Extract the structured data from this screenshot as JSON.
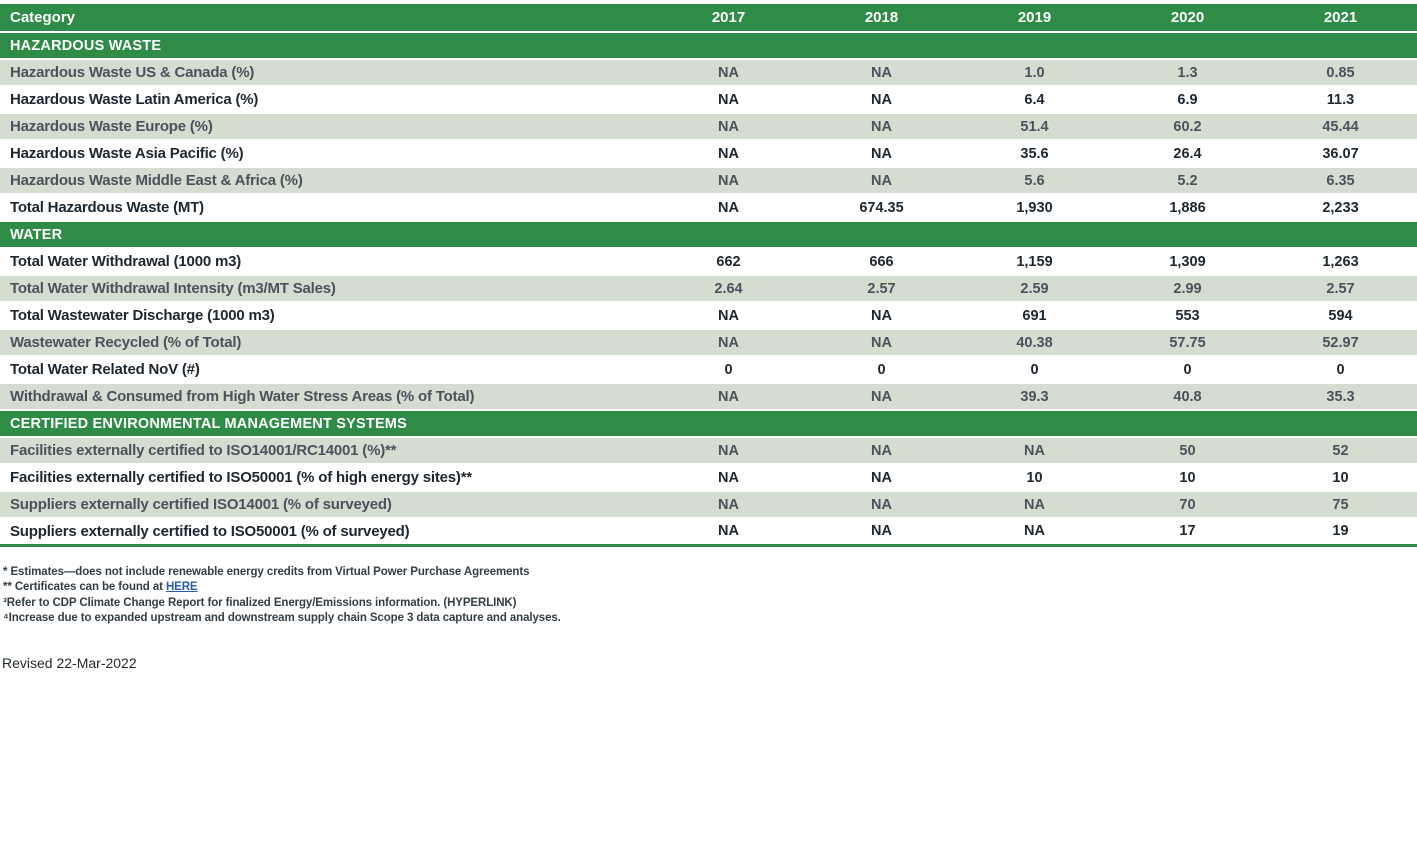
{
  "table": {
    "columns": [
      "Category",
      "2017",
      "2018",
      "2019",
      "2020",
      "2021"
    ],
    "sections": [
      {
        "header": "HAZARDOUS WASTE",
        "rows": [
          {
            "label": "Hazardous Waste US & Canada (%)",
            "values": [
              "NA",
              "NA",
              "1.0",
              "1.3",
              "0.85"
            ]
          },
          {
            "label": "Hazardous Waste Latin America (%)",
            "values": [
              "NA",
              "NA",
              "6.4",
              "6.9",
              "11.3"
            ]
          },
          {
            "label": "Hazardous Waste Europe (%)",
            "values": [
              "NA",
              "NA",
              "51.4",
              "60.2",
              "45.44"
            ]
          },
          {
            "label": "Hazardous Waste Asia Pacific (%)",
            "values": [
              "NA",
              "NA",
              "35.6",
              "26.4",
              "36.07"
            ]
          },
          {
            "label": "Hazardous Waste Middle East & Africa (%)",
            "values": [
              "NA",
              "NA",
              "5.6",
              "5.2",
              "6.35"
            ]
          },
          {
            "label": "Total Hazardous Waste (MT)",
            "values": [
              "NA",
              "674.35",
              "1,930",
              "1,886",
              "2,233"
            ]
          }
        ]
      },
      {
        "header": "WATER",
        "rows": [
          {
            "label": "Total Water Withdrawal (1000 m3)",
            "values": [
              "662",
              "666",
              "1,159",
              "1,309",
              "1,263"
            ]
          },
          {
            "label": "Total Water Withdrawal Intensity (m3/MT Sales)",
            "values": [
              "2.64",
              "2.57",
              "2.59",
              "2.99",
              "2.57"
            ]
          },
          {
            "label": "Total Wastewater Discharge (1000 m3)",
            "values": [
              "NA",
              "NA",
              "691",
              "553",
              "594"
            ]
          },
          {
            "label": "Wastewater Recycled (% of Total)",
            "values": [
              "NA",
              "NA",
              "40.38",
              "57.75",
              "52.97"
            ]
          },
          {
            "label": "Total Water Related NoV (#)",
            "values": [
              "0",
              "0",
              "0",
              "0",
              "0"
            ]
          },
          {
            "label": "Withdrawal & Consumed from High Water Stress Areas (% of Total)",
            "values": [
              "NA",
              "NA",
              "39.3",
              "40.8",
              "35.3"
            ]
          }
        ]
      },
      {
        "header": "CERTIFIED ENVIRONMENTAL MANAGEMENT SYSTEMS",
        "rows": [
          {
            "label": "Facilities externally certified to ISO14001/RC14001 (%)**",
            "values": [
              "NA",
              "NA",
              "NA",
              "50",
              "52"
            ]
          },
          {
            "label": "Facilities externally certified to ISO50001 (% of high energy sites)**",
            "values": [
              "NA",
              "NA",
              "10",
              "10",
              "10"
            ]
          },
          {
            "label": "Suppliers externally certified ISO14001 (% of surveyed)",
            "values": [
              "NA",
              "NA",
              "NA",
              "70",
              "75"
            ]
          },
          {
            "label": "Suppliers externally certified to ISO50001 (% of surveyed)",
            "values": [
              "NA",
              "NA",
              "NA",
              "17",
              "19"
            ]
          }
        ]
      }
    ]
  },
  "footnotes": {
    "line1": "* Estimates—does not include renewable energy credits from Virtual Power Purchase Agreements",
    "line2_prefix": "** Certificates can be found at ",
    "line2_link": "HERE",
    "line3_marker": "³",
    "line3_text": "Refer to CDP Climate Change Report for finalized Energy/Emissions information. (HYPERLINK)",
    "line4_marker": "⁴",
    "line4_text": "Increase due to expanded upstream and downstream supply chain Scope 3 data capture and analyses."
  },
  "revised": "Revised 22-Mar-2022",
  "colors": {
    "band_green": "#2e8c46",
    "light_row": "#d4ddcf",
    "dark_text": "#1d2730",
    "slate_text": "#47545d",
    "link_blue": "#2a5da8",
    "footnote_text": "#333e45"
  }
}
